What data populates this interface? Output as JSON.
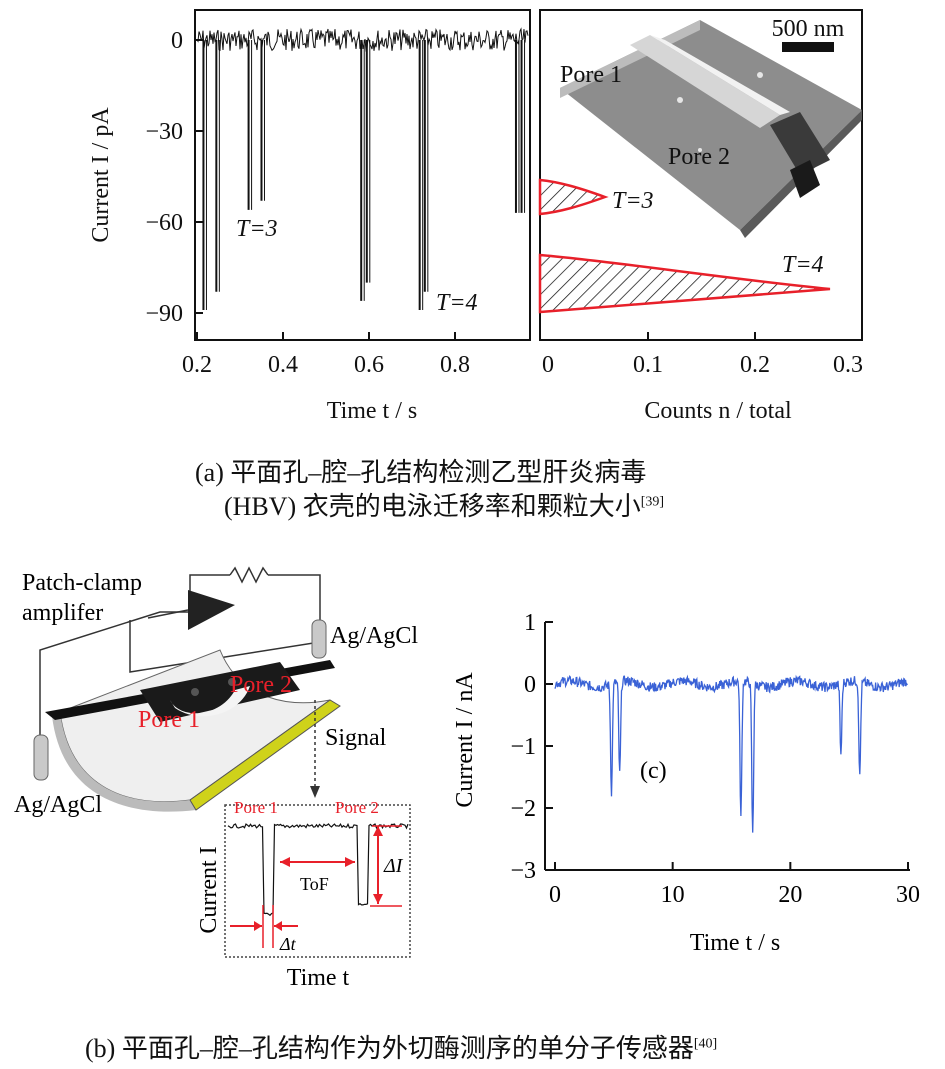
{
  "panel_a": {
    "trace": {
      "ylabel": "Current I / pA",
      "xlabel": "Time t / s",
      "yticks": [
        "0",
        "−30",
        "−60",
        "−90"
      ],
      "xticks": [
        "0.2",
        "0.4",
        "0.6",
        "0.8"
      ],
      "label_t3": "T=3",
      "label_t4": "T=4"
    },
    "histogram": {
      "xlabel": "Counts n / total",
      "xticks": [
        "0",
        "0.1",
        "0.2",
        "0.3"
      ],
      "label_t3": "T=3",
      "label_t4": "T=4",
      "scalebar": "500 nm",
      "pore1": "Pore 1",
      "pore2": "Pore 2"
    },
    "caption_line1": "(a) 平面孔–腔–孔结构检测乙型肝炎病毒",
    "caption_line2": "(HBV) 衣壳的电泳迁移率和颗粒大小",
    "caption_ref": "[39]"
  },
  "panel_b": {
    "amplifier": "Patch-clamp amplifer",
    "amplifier_line1": "Patch-clamp",
    "amplifier_line2": "amplifer",
    "electrode_top": "Ag/AgCl",
    "electrode_bottom": "Ag/AgCl",
    "pore1": "Pore 1",
    "pore2": "Pore 2",
    "signal": "Signal",
    "inset": {
      "pore1": "Pore 1",
      "pore2": "Pore 2",
      "ylabel": "Current I",
      "xlabel": "Time t",
      "tof": "ToF",
      "delta_i": "ΔI",
      "delta_t": "Δt"
    },
    "caption": "(b) 平面孔–腔–孔结构作为外切酶测序的单分子传感器",
    "caption_ref": "[40]"
  },
  "panel_c": {
    "label": "(c)",
    "ylabel": "Current I / nA",
    "xlabel": "Time t / s",
    "yticks": [
      "1",
      "0",
      "−1",
      "−2",
      "−3"
    ],
    "xticks": [
      "0",
      "10",
      "20",
      "30"
    ],
    "color": "#3a62d6"
  },
  "chart_data": [
    {
      "type": "line",
      "title": "",
      "xlabel": "Time t / s",
      "ylabel": "Current I / pA",
      "xlim": [
        0.19,
        0.97
      ],
      "ylim": [
        -99,
        8
      ],
      "baseline": 0,
      "events": [
        {
          "t": 0.215,
          "depth": -89
        },
        {
          "t": 0.245,
          "depth": -83
        },
        {
          "t": 0.32,
          "depth": -56
        },
        {
          "t": 0.35,
          "depth": -53
        },
        {
          "t": 0.582,
          "depth": -86
        },
        {
          "t": 0.595,
          "depth": -80
        },
        {
          "t": 0.718,
          "depth": -89
        },
        {
          "t": 0.73,
          "depth": -83
        },
        {
          "t": 0.942,
          "depth": -57
        },
        {
          "t": 0.955,
          "depth": -57
        }
      ],
      "annotations": [
        "T=3",
        "T=4"
      ]
    },
    {
      "type": "area",
      "title": "",
      "xlabel": "Counts n / total",
      "xlim": [
        0,
        0.3
      ],
      "series": [
        {
          "name": "T=3",
          "peak_count": 0.055,
          "peak_current": -52
        },
        {
          "name": "T=4",
          "peak_count": 0.285,
          "peak_current": -83
        }
      ]
    },
    {
      "type": "line",
      "title": "",
      "xlabel": "Time t / s",
      "ylabel": "Current I / nA",
      "xlim": [
        0,
        30
      ],
      "ylim": [
        -3,
        1
      ],
      "events": [
        {
          "t": 4.8,
          "depth": -1.75
        },
        {
          "t": 5.5,
          "depth": -1.5
        },
        {
          "t": 15.8,
          "depth": -2.2
        },
        {
          "t": 16.8,
          "depth": -2.45
        },
        {
          "t": 24.3,
          "depth": -1.15
        },
        {
          "t": 25.9,
          "depth": -1.55
        }
      ],
      "color": "#3a62d6"
    }
  ]
}
